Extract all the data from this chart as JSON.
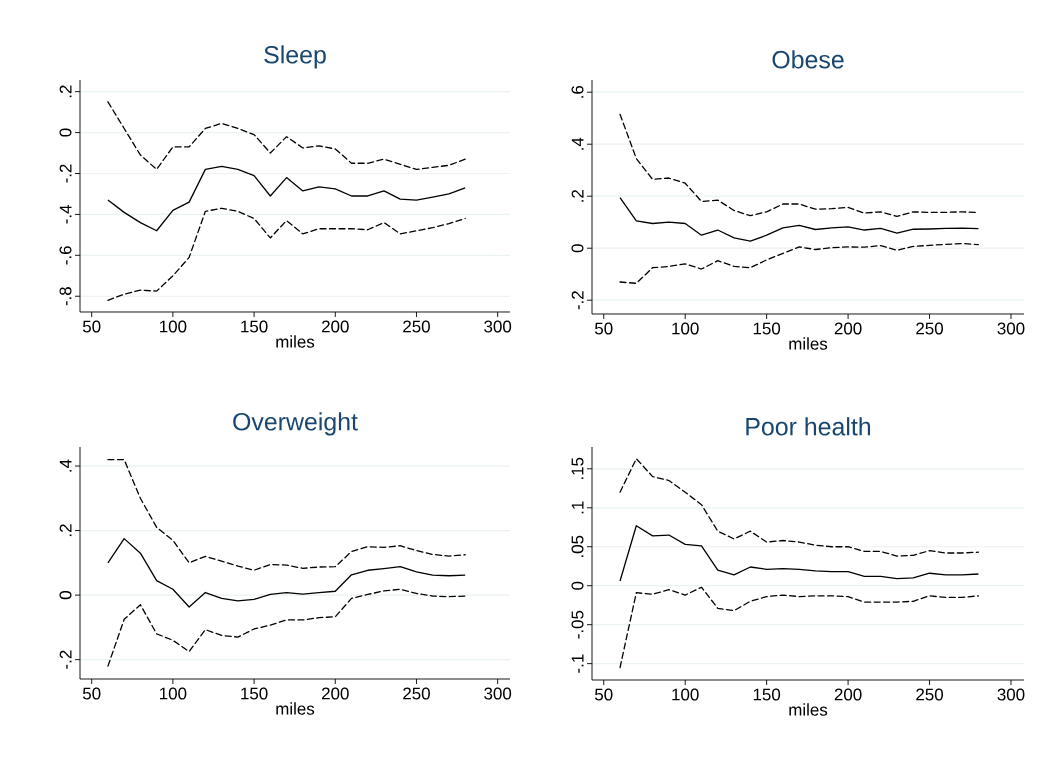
{
  "chart_data": [
    {
      "type": "line",
      "title": "Sleep",
      "xlabel": "miles",
      "grid": "y",
      "x": [
        60,
        70,
        80,
        90,
        100,
        110,
        120,
        130,
        140,
        150,
        160,
        170,
        180,
        190,
        200,
        210,
        220,
        230,
        240,
        250,
        260,
        270,
        280
      ],
      "xlim": [
        42.8,
        307.6
      ],
      "ylim": [
        -0.877,
        0.257
      ],
      "xticks": [
        50,
        100,
        150,
        200,
        250,
        300
      ],
      "yticks": [
        {
          "value": -0.8,
          "label": "-.8"
        },
        {
          "value": -0.6,
          "label": "-.6"
        },
        {
          "value": -0.4,
          "label": "-.4"
        },
        {
          "value": -0.2,
          "label": "-.2"
        },
        0,
        {
          "value": 0.2,
          "label": ".2"
        }
      ],
      "series": [
        {
          "color": "#000000",
          "line_style": "solid",
          "values": [
            -0.33,
            -0.39,
            -0.44,
            -0.48,
            -0.38,
            -0.34,
            -0.18,
            -0.165,
            -0.18,
            -0.21,
            -0.31,
            -0.22,
            -0.285,
            -0.265,
            -0.275,
            -0.31,
            -0.31,
            -0.285,
            -0.325,
            -0.33,
            -0.315,
            -0.3,
            -0.27
          ]
        },
        {
          "color": "#000000",
          "line_style": "dashed",
          "values": [
            0.15,
            0.02,
            -0.11,
            -0.18,
            -0.07,
            -0.07,
            0.02,
            0.045,
            0.02,
            -0.01,
            -0.1,
            -0.02,
            -0.075,
            -0.065,
            -0.08,
            -0.15,
            -0.15,
            -0.13,
            -0.155,
            -0.18,
            -0.17,
            -0.16,
            -0.13
          ]
        },
        {
          "color": "#000000",
          "line_style": "dashed",
          "values": [
            -0.82,
            -0.79,
            -0.77,
            -0.775,
            -0.7,
            -0.61,
            -0.385,
            -0.37,
            -0.385,
            -0.42,
            -0.515,
            -0.43,
            -0.495,
            -0.47,
            -0.47,
            -0.47,
            -0.475,
            -0.44,
            -0.495,
            -0.48,
            -0.465,
            -0.445,
            -0.42
          ]
        }
      ]
    },
    {
      "type": "line",
      "title": "Obese",
      "xlabel": "miles",
      "grid": "y",
      "x": [
        60,
        70,
        80,
        90,
        100,
        110,
        120,
        130,
        140,
        150,
        160,
        170,
        180,
        190,
        200,
        210,
        220,
        230,
        240,
        250,
        260,
        270,
        280
      ],
      "xlim": [
        42.8,
        308
      ],
      "ylim": [
        -0.253,
        0.647
      ],
      "xticks": [
        50,
        100,
        150,
        200,
        250,
        300
      ],
      "yticks": [
        {
          "value": -0.2,
          "label": "-.2"
        },
        0,
        {
          "value": 0.2,
          "label": ".2"
        },
        {
          "value": 0.4,
          "label": ".4"
        },
        {
          "value": 0.6,
          "label": ".6"
        }
      ],
      "series": [
        {
          "color": "#000000",
          "line_style": "solid",
          "values": [
            0.195,
            0.105,
            0.095,
            0.1,
            0.095,
            0.05,
            0.07,
            0.04,
            0.027,
            0.05,
            0.078,
            0.088,
            0.072,
            0.078,
            0.082,
            0.07,
            0.076,
            0.058,
            0.073,
            0.074,
            0.076,
            0.077,
            0.075
          ]
        },
        {
          "color": "#000000",
          "line_style": "dashed",
          "values": [
            0.515,
            0.345,
            0.265,
            0.27,
            0.25,
            0.18,
            0.185,
            0.145,
            0.125,
            0.14,
            0.17,
            0.17,
            0.15,
            0.152,
            0.157,
            0.135,
            0.14,
            0.122,
            0.14,
            0.138,
            0.138,
            0.14,
            0.137
          ]
        },
        {
          "color": "#000000",
          "line_style": "dashed",
          "values": [
            -0.13,
            -0.135,
            -0.075,
            -0.07,
            -0.06,
            -0.08,
            -0.048,
            -0.07,
            -0.075,
            -0.045,
            -0.02,
            0.005,
            -0.005,
            0.002,
            0.005,
            0.004,
            0.01,
            -0.008,
            0.007,
            0.011,
            0.015,
            0.018,
            0.014
          ]
        }
      ]
    },
    {
      "type": "line",
      "title": "Overweight",
      "xlabel": "miles",
      "grid": "y",
      "x": [
        60,
        70,
        80,
        90,
        100,
        110,
        120,
        130,
        140,
        150,
        160,
        170,
        180,
        190,
        200,
        210,
        220,
        230,
        240,
        250,
        260,
        270,
        280
      ],
      "xlim": [
        42.8,
        307.6
      ],
      "ylim": [
        -0.26,
        0.459
      ],
      "xticks": [
        50,
        100,
        150,
        200,
        250,
        300
      ],
      "yticks": [
        {
          "value": -0.2,
          "label": "-.2"
        },
        0,
        {
          "value": 0.2,
          "label": ".2"
        },
        {
          "value": 0.4,
          "label": ".4"
        }
      ],
      "series": [
        {
          "color": "#000000",
          "line_style": "solid",
          "values": [
            0.1,
            0.175,
            0.13,
            0.045,
            0.018,
            -0.037,
            0.008,
            -0.01,
            -0.018,
            -0.013,
            0.002,
            0.008,
            0.003,
            0.008,
            0.012,
            0.063,
            0.077,
            0.082,
            0.088,
            0.072,
            0.062,
            0.06,
            0.062
          ]
        },
        {
          "color": "#000000",
          "line_style": "dashed",
          "values": [
            0.42,
            0.42,
            0.3,
            0.21,
            0.17,
            0.1,
            0.12,
            0.105,
            0.09,
            0.077,
            0.095,
            0.093,
            0.083,
            0.087,
            0.088,
            0.135,
            0.15,
            0.148,
            0.153,
            0.138,
            0.126,
            0.121,
            0.125
          ]
        },
        {
          "color": "#000000",
          "line_style": "dashed",
          "values": [
            -0.22,
            -0.075,
            -0.03,
            -0.12,
            -0.14,
            -0.175,
            -0.107,
            -0.125,
            -0.13,
            -0.105,
            -0.093,
            -0.077,
            -0.077,
            -0.07,
            -0.067,
            -0.01,
            0.002,
            0.013,
            0.018,
            0.005,
            -0.003,
            -0.005,
            -0.003
          ]
        }
      ]
    },
    {
      "type": "line",
      "title": "Poor health",
      "xlabel": "miles",
      "grid": "y",
      "x": [
        60,
        70,
        80,
        90,
        100,
        110,
        120,
        130,
        140,
        150,
        160,
        170,
        180,
        190,
        200,
        210,
        220,
        230,
        240,
        250,
        260,
        270,
        280
      ],
      "xlim": [
        42.8,
        308
      ],
      "ylim": [
        -0.121,
        0.178
      ],
      "xticks": [
        50,
        100,
        150,
        200,
        250,
        300
      ],
      "yticks": [
        {
          "value": -0.1,
          "label": "-.1"
        },
        {
          "value": -0.05,
          "label": "-.05"
        },
        0,
        {
          "value": 0.05,
          "label": ".05"
        },
        {
          "value": 0.1,
          "label": ".1"
        },
        {
          "value": 0.15,
          "label": ".15"
        }
      ],
      "series": [
        {
          "color": "#000000",
          "line_style": "solid",
          "values": [
            0.006,
            0.077,
            0.064,
            0.065,
            0.053,
            0.051,
            0.02,
            0.014,
            0.024,
            0.021,
            0.022,
            0.021,
            0.019,
            0.018,
            0.018,
            0.012,
            0.012,
            0.009,
            0.01,
            0.016,
            0.014,
            0.014,
            0.015
          ]
        },
        {
          "color": "#000000",
          "line_style": "dashed",
          "values": [
            0.12,
            0.163,
            0.14,
            0.135,
            0.12,
            0.104,
            0.07,
            0.06,
            0.07,
            0.056,
            0.058,
            0.056,
            0.052,
            0.05,
            0.05,
            0.044,
            0.044,
            0.038,
            0.039,
            0.045,
            0.042,
            0.042,
            0.043
          ]
        },
        {
          "color": "#000000",
          "line_style": "dashed",
          "values": [
            -0.105,
            -0.009,
            -0.011,
            -0.005,
            -0.012,
            -0.002,
            -0.029,
            -0.032,
            -0.02,
            -0.014,
            -0.012,
            -0.014,
            -0.013,
            -0.013,
            -0.014,
            -0.021,
            -0.021,
            -0.021,
            -0.02,
            -0.013,
            -0.015,
            -0.015,
            -0.013
          ]
        }
      ]
    }
  ]
}
